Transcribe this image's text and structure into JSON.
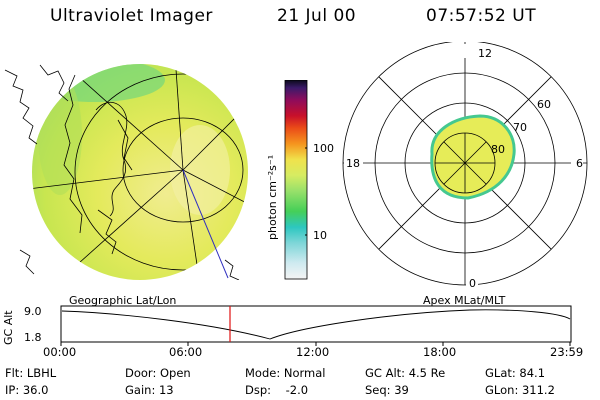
{
  "header": {
    "instrument": "Ultraviolet Imager",
    "date": "21 Jul 00",
    "time": "07:57:52 UT"
  },
  "colorbar": {
    "unit_label": "photon cm⁻²s⁻¹",
    "tick_100": "100",
    "tick_10": "10",
    "colors": [
      "#f2f2f2",
      "#cfeaf0",
      "#7fd6d8",
      "#2dc7c0",
      "#45cf58",
      "#96e06a",
      "#d6ec62",
      "#f0e24c",
      "#f3c530",
      "#f5941e",
      "#ea4a18",
      "#c8102a",
      "#8e0c5c",
      "#3c1a6a",
      "#0a0a1a"
    ]
  },
  "polar_plot": {
    "mlt_labels": {
      "top": "12",
      "left": "18",
      "right": "6",
      "bottom": "0"
    },
    "lat_labels": [
      "60",
      "70",
      "80"
    ]
  },
  "strip": {
    "ylabel": "GC Alt",
    "y_ticks": [
      "9.0",
      "1.8"
    ],
    "left_title": "Geographic Lat/Lon",
    "right_title": "Apex MLat/MLT",
    "x_ticks": [
      "00:00",
      "06:00",
      "12:00",
      "18:00",
      "23:59"
    ]
  },
  "info": {
    "row1": {
      "flt": "Flt: LBHL",
      "door": "Door: Open",
      "mode": "Mode: Normal",
      "gcalt": "GC Alt: 4.5 Re",
      "glat": "GLat:  84.1"
    },
    "row2": {
      "ip": "IP: 36.0",
      "gain": "Gain: 13",
      "dsp": "Dsp:    -2.0",
      "seq": "Seq: 39",
      "glon": "GLon: 311.2"
    }
  },
  "colors": {
    "current_time_marker": "#e01010",
    "track_line": "#3030c0"
  }
}
